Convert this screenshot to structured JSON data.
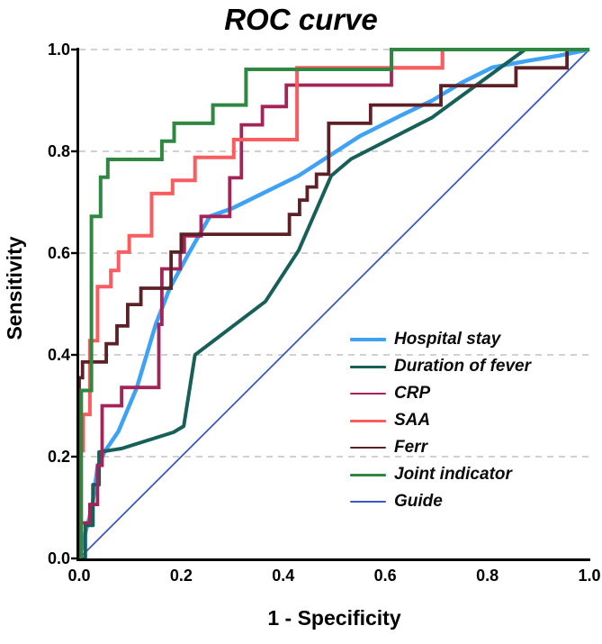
{
  "title": "ROC curve",
  "x_axis": {
    "label": "1 - Specificity",
    "ticks": [
      "0.0",
      "0.2",
      "0.4",
      "0.6",
      "0.8",
      "1.0"
    ]
  },
  "y_axis": {
    "label": "Sensitivity",
    "ticks": [
      "0.0",
      "0.2",
      "0.4",
      "0.6",
      "0.8",
      "1.0"
    ]
  },
  "colors": {
    "axis": "#000000",
    "gridline": "#c2c2c2",
    "background": "#ffffff"
  },
  "chart_data": {
    "type": "line",
    "title": "ROC curve",
    "xlabel": "1 - Specificity",
    "ylabel": "Sensitivity",
    "xlim": [
      0,
      1
    ],
    "ylim": [
      0,
      1
    ],
    "grid": "horizontal-dashed-at-0.2-intervals",
    "legend_position": "inside-lower-right",
    "series": [
      {
        "name": "Hospital stay",
        "color": "#3fa2f5",
        "width": 4.5,
        "z": 1,
        "smooth": true,
        "points": [
          [
            0,
            0
          ],
          [
            0.012,
            0.05
          ],
          [
            0.025,
            0.1
          ],
          [
            0.036,
            0.18
          ],
          [
            0.05,
            0.21
          ],
          [
            0.077,
            0.25
          ],
          [
            0.113,
            0.336
          ],
          [
            0.15,
            0.46
          ],
          [
            0.177,
            0.53
          ],
          [
            0.215,
            0.6
          ],
          [
            0.256,
            0.672
          ],
          [
            0.3,
            0.688
          ],
          [
            0.43,
            0.752
          ],
          [
            0.55,
            0.83
          ],
          [
            0.63,
            0.87
          ],
          [
            0.692,
            0.9
          ],
          [
            0.75,
            0.935
          ],
          [
            0.81,
            0.965
          ],
          [
            0.88,
            0.978
          ],
          [
            0.94,
            0.988
          ],
          [
            1,
            1
          ]
        ]
      },
      {
        "name": "Duration of fever",
        "color": "#176059",
        "width": 4,
        "z": 2,
        "smooth": true,
        "points": [
          [
            0,
            0
          ],
          [
            0.012,
            0
          ],
          [
            0.012,
            0.065
          ],
          [
            0.027,
            0.065
          ],
          [
            0.027,
            0.145
          ],
          [
            0.039,
            0.145
          ],
          [
            0.039,
            0.209
          ],
          [
            0.083,
            0.216
          ],
          [
            0.185,
            0.248
          ],
          [
            0.205,
            0.26
          ],
          [
            0.227,
            0.4
          ],
          [
            0.365,
            0.505
          ],
          [
            0.43,
            0.605
          ],
          [
            0.494,
            0.752
          ],
          [
            0.533,
            0.785
          ],
          [
            0.691,
            0.866
          ],
          [
            0.874,
            1
          ],
          [
            1,
            1
          ]
        ]
      },
      {
        "name": "CRP",
        "color": "#a22458",
        "width": 3.8,
        "z": 3,
        "smooth": false,
        "points": [
          [
            0,
            0
          ],
          [
            0,
            0.07
          ],
          [
            0.021,
            0.07
          ],
          [
            0.021,
            0.106
          ],
          [
            0.036,
            0.106
          ],
          [
            0.036,
            0.183
          ],
          [
            0.045,
            0.183
          ],
          [
            0.045,
            0.3
          ],
          [
            0.083,
            0.3
          ],
          [
            0.083,
            0.336
          ],
          [
            0.156,
            0.336
          ],
          [
            0.156,
            0.46
          ],
          [
            0.162,
            0.46
          ],
          [
            0.162,
            0.569
          ],
          [
            0.198,
            0.569
          ],
          [
            0.198,
            0.602
          ],
          [
            0.206,
            0.602
          ],
          [
            0.206,
            0.634
          ],
          [
            0.239,
            0.634
          ],
          [
            0.239,
            0.672
          ],
          [
            0.295,
            0.672
          ],
          [
            0.295,
            0.748
          ],
          [
            0.318,
            0.748
          ],
          [
            0.318,
            0.852
          ],
          [
            0.359,
            0.852
          ],
          [
            0.359,
            0.888
          ],
          [
            0.406,
            0.888
          ],
          [
            0.406,
            0.93
          ],
          [
            0.612,
            0.93
          ],
          [
            0.612,
            0.964
          ],
          [
            0.712,
            0.964
          ],
          [
            0.712,
            1
          ],
          [
            1,
            1
          ]
        ]
      },
      {
        "name": "SAA",
        "color": "#f95d60",
        "width": 4,
        "z": 4,
        "smooth": false,
        "points": [
          [
            0,
            0
          ],
          [
            0,
            0.212
          ],
          [
            0.008,
            0.212
          ],
          [
            0.008,
            0.283
          ],
          [
            0.021,
            0.283
          ],
          [
            0.021,
            0.428
          ],
          [
            0.036,
            0.428
          ],
          [
            0.036,
            0.534
          ],
          [
            0.062,
            0.534
          ],
          [
            0.062,
            0.566
          ],
          [
            0.077,
            0.566
          ],
          [
            0.077,
            0.602
          ],
          [
            0.098,
            0.602
          ],
          [
            0.098,
            0.634
          ],
          [
            0.142,
            0.634
          ],
          [
            0.142,
            0.717
          ],
          [
            0.183,
            0.717
          ],
          [
            0.183,
            0.743
          ],
          [
            0.227,
            0.743
          ],
          [
            0.227,
            0.788
          ],
          [
            0.303,
            0.788
          ],
          [
            0.303,
            0.823
          ],
          [
            0.427,
            0.823
          ],
          [
            0.427,
            0.964
          ],
          [
            0.712,
            0.964
          ],
          [
            0.712,
            1
          ],
          [
            1,
            1
          ]
        ]
      },
      {
        "name": "Ferr",
        "color": "#5c2126",
        "width": 3.8,
        "z": 5,
        "smooth": false,
        "points": [
          [
            0,
            0
          ],
          [
            0,
            0.355
          ],
          [
            0.0065,
            0.355
          ],
          [
            0.0065,
            0.386
          ],
          [
            0.053,
            0.386
          ],
          [
            0.053,
            0.422
          ],
          [
            0.074,
            0.422
          ],
          [
            0.074,
            0.457
          ],
          [
            0.095,
            0.457
          ],
          [
            0.095,
            0.499
          ],
          [
            0.121,
            0.499
          ],
          [
            0.121,
            0.531
          ],
          [
            0.18,
            0.531
          ],
          [
            0.18,
            0.602
          ],
          [
            0.2,
            0.602
          ],
          [
            0.2,
            0.637
          ],
          [
            0.412,
            0.637
          ],
          [
            0.412,
            0.676
          ],
          [
            0.432,
            0.676
          ],
          [
            0.432,
            0.704
          ],
          [
            0.447,
            0.704
          ],
          [
            0.447,
            0.73
          ],
          [
            0.465,
            0.73
          ],
          [
            0.465,
            0.755
          ],
          [
            0.489,
            0.755
          ],
          [
            0.489,
            0.855
          ],
          [
            0.571,
            0.855
          ],
          [
            0.571,
            0.891
          ],
          [
            0.709,
            0.891
          ],
          [
            0.709,
            0.929
          ],
          [
            0.856,
            0.929
          ],
          [
            0.856,
            0.964
          ],
          [
            0.956,
            0.964
          ],
          [
            0.956,
            1
          ],
          [
            1,
            1
          ]
        ]
      },
      {
        "name": "Joint indicator",
        "color": "#2f8742",
        "width": 4,
        "z": 6,
        "smooth": false,
        "points": [
          [
            0,
            0
          ],
          [
            0.004,
            0
          ],
          [
            0.004,
            0.33
          ],
          [
            0.024,
            0.33
          ],
          [
            0.024,
            0.672
          ],
          [
            0.042,
            0.672
          ],
          [
            0.042,
            0.749
          ],
          [
            0.056,
            0.749
          ],
          [
            0.056,
            0.784
          ],
          [
            0.162,
            0.784
          ],
          [
            0.162,
            0.82
          ],
          [
            0.186,
            0.82
          ],
          [
            0.186,
            0.855
          ],
          [
            0.262,
            0.855
          ],
          [
            0.262,
            0.891
          ],
          [
            0.327,
            0.891
          ],
          [
            0.327,
            0.961
          ],
          [
            0.612,
            0.961
          ],
          [
            0.612,
            1
          ],
          [
            1,
            1
          ]
        ]
      },
      {
        "name": "Guide",
        "color": "#3a57c4",
        "width": 1.8,
        "z": 0,
        "smooth": false,
        "points": [
          [
            0,
            0
          ],
          [
            1,
            1
          ]
        ]
      }
    ]
  }
}
